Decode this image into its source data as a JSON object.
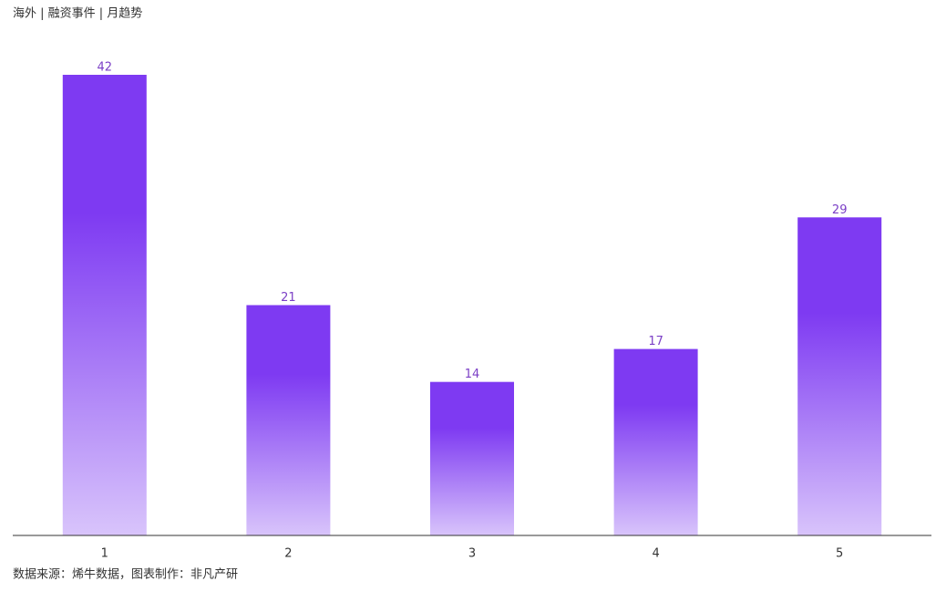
{
  "chart_data": {
    "type": "bar",
    "title": "海外 | 融资事件 | 月趋势",
    "categories": [
      "1",
      "2",
      "3",
      "4",
      "5"
    ],
    "values": [
      42,
      21,
      14,
      17,
      29
    ],
    "color": "#7e3af2",
    "ylim": [
      0,
      42
    ],
    "source": "数据来源：烯牛数据，图表制作：非凡产研"
  }
}
